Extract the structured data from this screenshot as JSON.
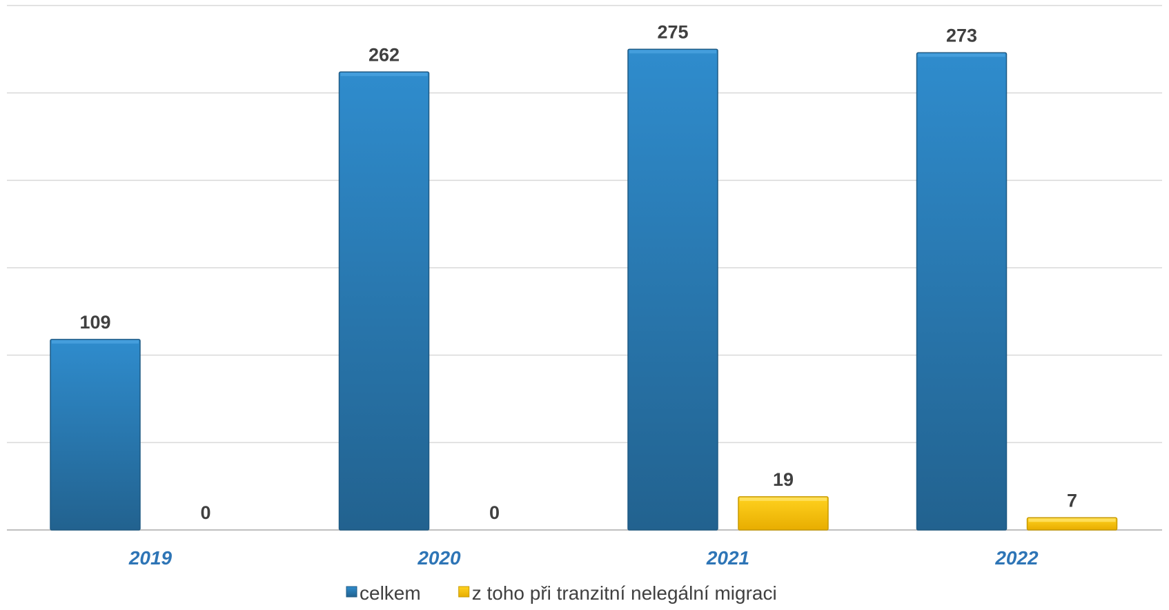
{
  "chart_data": {
    "type": "bar",
    "categories": [
      "2019",
      "2020",
      "2021",
      "2022"
    ],
    "series": [
      {
        "name": "celkem",
        "values": [
          109,
          262,
          275,
          273
        ],
        "color": "#2e86c8"
      },
      {
        "name": "z toho při tranzitní nelegální migraci",
        "values": [
          0,
          0,
          19,
          7
        ],
        "color": "#ffc000"
      }
    ],
    "ylim": [
      0,
      300
    ],
    "grid": true,
    "legend": "bottom",
    "data_labels": true
  }
}
